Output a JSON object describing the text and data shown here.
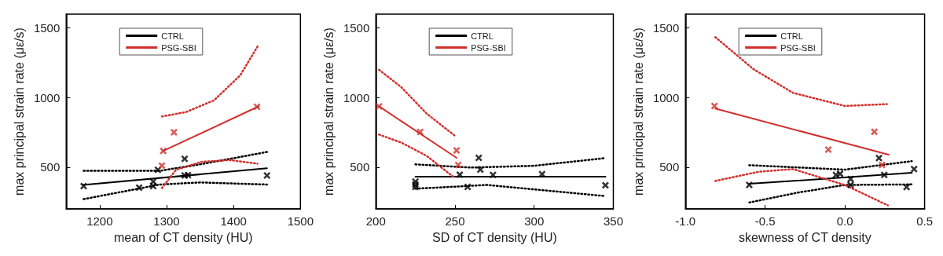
{
  "chart_data": [
    {
      "type": "scatter",
      "xlabel": "mean of CT density (HU)",
      "ylabel": "max principal strain rate (με/s)",
      "xlim": [
        1150,
        1500
      ],
      "xticks": [
        1200,
        1300,
        1400,
        1500
      ],
      "ylim": [
        200,
        1600
      ],
      "yticks": [
        500,
        1000,
        1500
      ],
      "legend": "top",
      "grid": false,
      "series": [
        {
          "marker": "cross",
          "color": "#000000",
          "x": [
            1176,
            1259,
            1280,
            1280,
            1287,
            1327,
            1327,
            1332,
            1450
          ],
          "values": [
            364,
            353,
            396,
            364,
            481,
            560,
            440,
            443,
            440
          ]
        },
        {
          "marker": "cross",
          "color": "#d0312d",
          "x": [
            1293,
            1295,
            1311,
            1435
          ],
          "values": [
            511,
            617,
            751,
            934
          ]
        },
        {
          "type": "line",
          "name": "CTRL",
          "color": "#000000",
          "line_style": "solid",
          "x": [
            1175,
            1450
          ],
          "values": [
            372,
            492
          ]
        },
        {
          "type": "line",
          "color": "#000000",
          "line_style": "dotted",
          "x": [
            1176,
            1290,
            1350,
            1450
          ],
          "values": [
            474,
            474,
            520,
            609
          ]
        },
        {
          "type": "line",
          "color": "#000000",
          "line_style": "dotted",
          "x": [
            1176,
            1290,
            1350,
            1450
          ],
          "values": [
            270,
            375,
            390,
            375
          ]
        },
        {
          "type": "line",
          "name": "PSG-SBI",
          "color": "#d0312d",
          "line_style": "solid",
          "x": [
            1295,
            1438
          ],
          "values": [
            617,
            938
          ]
        },
        {
          "type": "line",
          "color": "#d0312d",
          "line_style": "dotted",
          "x": [
            1293,
            1329,
            1371,
            1410,
            1436
          ],
          "values": [
            864,
            896,
            981,
            1160,
            1368
          ]
        },
        {
          "type": "line",
          "color": "#d0312d",
          "line_style": "dotted",
          "x": [
            1293,
            1314,
            1352,
            1394,
            1436
          ],
          "values": [
            349,
            481,
            538,
            551,
            525
          ]
        }
      ]
    },
    {
      "type": "scatter",
      "xlabel": "SD of CT density (HU)",
      "ylabel": "max principal strain rate (με/s)",
      "xlim": [
        200,
        350
      ],
      "xticks": [
        200,
        250,
        300,
        350
      ],
      "ylim": [
        200,
        1600
      ],
      "yticks": [
        500,
        1000,
        1500
      ],
      "legend": "top",
      "grid": false,
      "series": [
        {
          "marker": "cross",
          "color": "#000000",
          "x": [
            225,
            225,
            225,
            258,
            253,
            265,
            266,
            274,
            305,
            345
          ],
          "values": [
            396,
            375,
            358,
            358,
            446,
            567,
            482,
            444,
            450,
            370
          ]
        },
        {
          "marker": "cross",
          "color": "#d0312d",
          "x": [
            202,
            228,
            251,
            252
          ],
          "values": [
            937,
            753,
            620,
            516
          ]
        },
        {
          "type": "line",
          "name": "CTRL",
          "color": "#000000",
          "line_style": "solid",
          "x": [
            225,
            345
          ],
          "values": [
            431,
            431
          ]
        },
        {
          "type": "line",
          "color": "#000000",
          "line_style": "dotted",
          "x": [
            225,
            260,
            300,
            345
          ],
          "values": [
            520,
            497,
            510,
            565
          ]
        },
        {
          "type": "line",
          "color": "#000000",
          "line_style": "dotted",
          "x": [
            225,
            270,
            345
          ],
          "values": [
            345,
            372,
            292
          ]
        },
        {
          "type": "line",
          "name": "PSG-SBI",
          "color": "#d0312d",
          "line_style": "solid",
          "x": [
            202,
            251
          ],
          "values": [
            937,
            567
          ]
        },
        {
          "type": "line",
          "color": "#d0312d",
          "line_style": "dotted",
          "x": [
            202,
            216,
            232,
            250
          ],
          "values": [
            1200,
            1076,
            886,
            725
          ]
        },
        {
          "type": "line",
          "color": "#d0312d",
          "line_style": "dotted",
          "x": [
            202,
            216,
            232,
            250
          ],
          "values": [
            734,
            677,
            582,
            421
          ]
        }
      ]
    },
    {
      "type": "scatter",
      "xlabel": "skewness of CT density",
      "ylabel": "max principal strain rate (με/s)",
      "xlim": [
        -1.0,
        0.5
      ],
      "xticks": [
        {
          "value": -1.0,
          "label": "-1.0"
        },
        {
          "value": -0.5,
          "label": "-0.5"
        },
        {
          "value": 0,
          "label": "0.0"
        },
        {
          "value": 0.5,
          "label": "0.5"
        }
      ],
      "ylim": [
        200,
        1600
      ],
      "yticks": [
        500,
        1000,
        1500
      ],
      "legend": "top",
      "grid": false,
      "series": [
        {
          "marker": "cross",
          "color": "#000000",
          "x": [
            -0.6,
            -0.056,
            -0.03,
            0.036,
            0.036,
            0.214,
            0.247,
            0.387,
            0.434
          ],
          "values": [
            372,
            444,
            452,
            414,
            372,
            565,
            444,
            357,
            486
          ]
        },
        {
          "marker": "cross",
          "color": "#d0312d",
          "x": [
            -0.818,
            -0.104,
            0.185,
            0.233
          ],
          "values": [
            940,
            626,
            754,
            516
          ]
        },
        {
          "type": "line",
          "name": "CTRL",
          "color": "#000000",
          "line_style": "solid",
          "x": [
            -0.6,
            0.42
          ],
          "values": [
            380,
            459
          ]
        },
        {
          "type": "line",
          "color": "#000000",
          "line_style": "dotted",
          "x": [
            -0.6,
            0.0,
            0.42
          ],
          "values": [
            514,
            482,
            543
          ]
        },
        {
          "type": "line",
          "color": "#000000",
          "line_style": "dotted",
          "x": [
            -0.6,
            -0.3,
            0.0,
            0.42
          ],
          "values": [
            246,
            316,
            372,
            376
          ]
        },
        {
          "type": "line",
          "name": "PSG-SBI",
          "color": "#d0312d",
          "line_style": "solid",
          "x": [
            -0.813,
            0.275
          ],
          "values": [
            921,
            590
          ]
        },
        {
          "type": "line",
          "color": "#d0312d",
          "line_style": "dotted",
          "x": [
            -0.813,
            -0.573,
            -0.325,
            0.0,
            0.263
          ],
          "values": [
            1435,
            1204,
            1034,
            940,
            953
          ]
        },
        {
          "type": "line",
          "color": "#d0312d",
          "line_style": "dotted",
          "x": [
            -0.813,
            -0.54,
            -0.325,
            0.0,
            0.27
          ],
          "values": [
            401,
            467,
            486,
            372,
            225
          ]
        }
      ]
    }
  ]
}
